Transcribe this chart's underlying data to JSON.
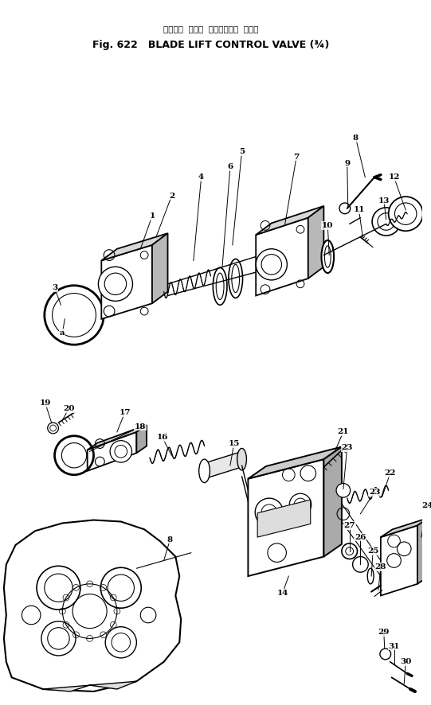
{
  "title_japanese": "ブレード  リフト  コントロール  バルブ",
  "title_english": "Fig. 622   BLADE LIFT CONTROL VALVE (¾)",
  "background_color": "#ffffff",
  "line_color": "#000000",
  "fig_width": 5.41,
  "fig_height": 8.86,
  "dpi": 100
}
